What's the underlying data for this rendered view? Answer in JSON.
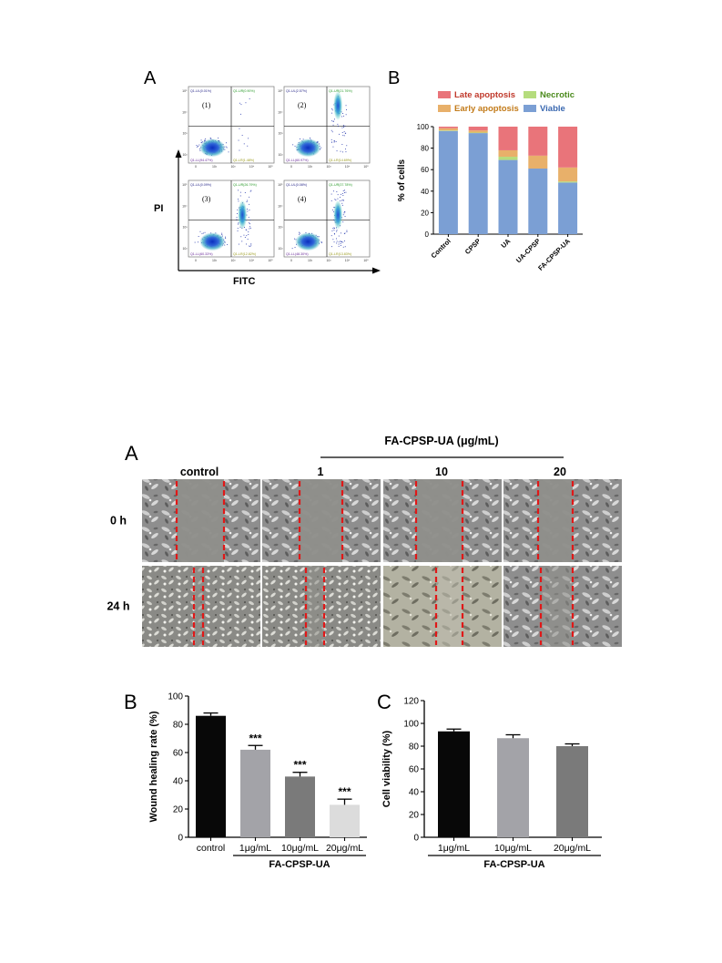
{
  "top_figure": {
    "panel_a_label": "A",
    "panel_b_label": "B",
    "flow": {
      "y_axis_label": "PI",
      "x_axis_label": "FITC",
      "x_ticks": [
        "0",
        "10²",
        "10³",
        "10⁴",
        "10⁵"
      ],
      "y_ticks": [
        "10⁵",
        "10⁴",
        "10³",
        "10²"
      ],
      "plots": [
        {
          "index": "(1)",
          "q_ul": "Q1-UL(0.01%)",
          "q_ur": "Q1-UR(0.90%)",
          "q_ll": "Q1-LL(94.47%)",
          "q_lr": "Q1-LR(1.48%)"
        },
        {
          "index": "(2)",
          "q_ul": "Q1-UL(2.57%)",
          "q_ur": "Q1-UR(21.76%)",
          "q_ll": "Q1-LL(60.97%)",
          "q_lr": "Q1-LR(14.69%)"
        },
        {
          "index": "(3)",
          "q_ul": "Q1-UL(0.09%)",
          "q_ur": "Q1-UR(26.79%)",
          "q_ll": "Q1-LL(60.33%)",
          "q_lr": "Q1-LR(12.82%)"
        },
        {
          "index": "(4)",
          "q_ul": "Q1-UL(0.08%)",
          "q_ur": "Q1-UR(37.78%)",
          "q_ll": "Q1-LL(48.30%)",
          "q_lr": "Q1-LR(13.83%)"
        }
      ]
    },
    "chart_data": {
      "type": "bar",
      "stacked": true,
      "ylabel": "% of cells",
      "ylim": [
        0,
        100
      ],
      "yticks": [
        0,
        20,
        40,
        60,
        80,
        100
      ],
      "categories": [
        "Control",
        "CPSP",
        "UA",
        "UA-CPSP",
        "FA-CPSP-UA"
      ],
      "legend_placement": "top",
      "series": [
        {
          "name": "Viable",
          "color": "#7b9fd4",
          "values": [
            96,
            94,
            69,
            61,
            48
          ]
        },
        {
          "name": "Necrotic",
          "color": "#b5dc7d",
          "values": [
            0.5,
            0.5,
            3,
            0,
            1
          ]
        },
        {
          "name": "Early apoptosis",
          "color": "#e8b06a",
          "values": [
            2,
            2,
            6,
            12,
            13
          ]
        },
        {
          "name": "Late apoptosis",
          "color": "#e9747a",
          "values": [
            1.5,
            3.5,
            22,
            27,
            38
          ]
        }
      ]
    }
  },
  "bottom_figure": {
    "panel_a_label": "A",
    "panel_b_label": "B",
    "panel_c_label": "C",
    "group_title": "FA-CPSP-UA (μg/mL)",
    "columns": [
      "control",
      "1",
      "10",
      "20"
    ],
    "rows": [
      "0 h",
      "24 h"
    ],
    "significance": "***",
    "chart_data": [
      {
        "type": "bar",
        "ylabel": "Wound healing rate (%)",
        "ylim": [
          0,
          100
        ],
        "yticks": [
          0,
          20,
          40,
          60,
          80,
          100
        ],
        "categories": [
          "control",
          "1μg/mL",
          "10μg/mL",
          "20μg/mL"
        ],
        "group_label": "FA-CPSP-UA",
        "values": [
          86,
          62,
          43,
          23
        ],
        "errors": [
          2,
          3,
          3,
          4
        ],
        "colors": [
          "#080808",
          "#a3a3a8",
          "#7a7a7a",
          "#dcdcdc"
        ],
        "annotations": [
          "",
          "***",
          "***",
          "***"
        ]
      },
      {
        "type": "bar",
        "ylabel": "Cell viability (%)",
        "ylim": [
          0,
          120
        ],
        "yticks": [
          0,
          20,
          40,
          60,
          80,
          100,
          120
        ],
        "categories": [
          "1μg/mL",
          "10μg/mL",
          "20μg/mL"
        ],
        "group_label": "FA-CPSP-UA",
        "values": [
          93,
          87,
          80
        ],
        "errors": [
          2,
          3,
          2
        ],
        "colors": [
          "#080808",
          "#a3a3a8",
          "#7a7a7a"
        ]
      }
    ]
  }
}
